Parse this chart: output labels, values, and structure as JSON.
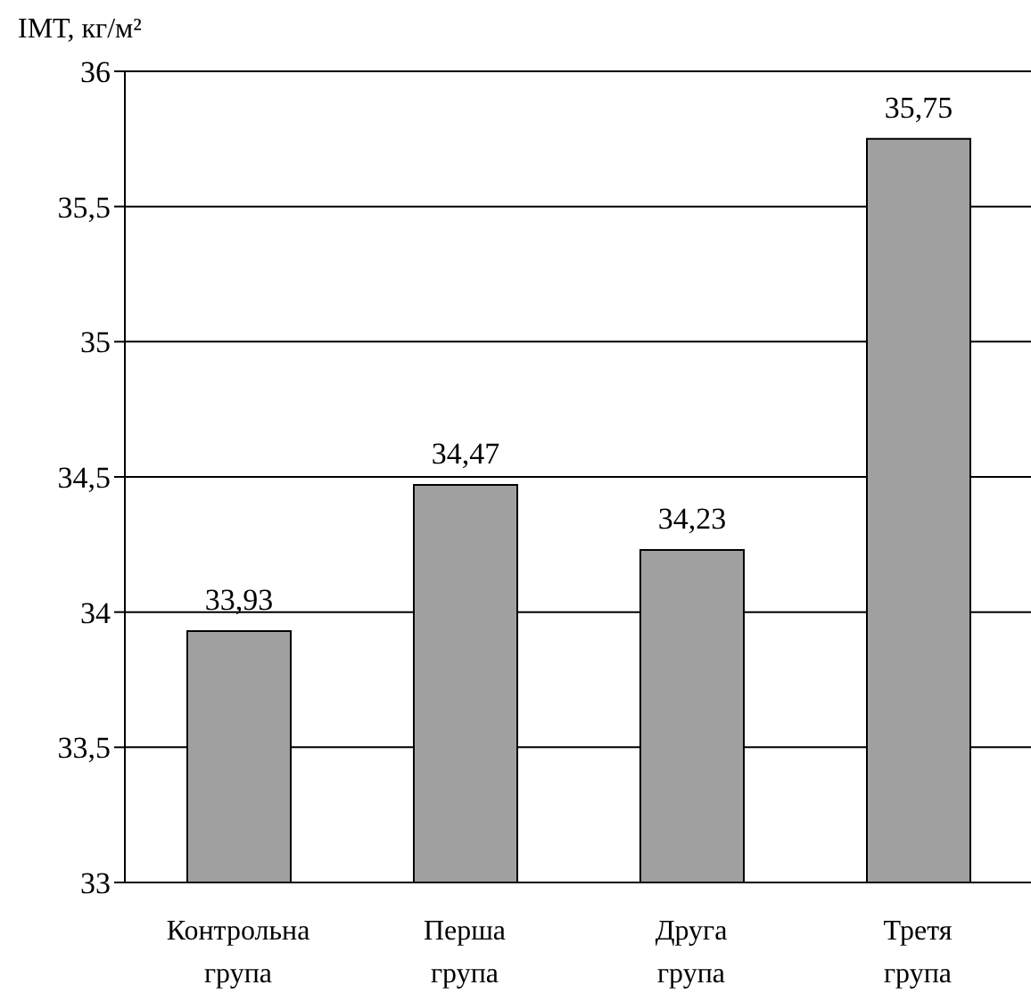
{
  "chart_data": {
    "type": "bar",
    "ylabel": "ІМТ, кг/м²",
    "categories": [
      "Контрольна група",
      "Перша група",
      "Друга група",
      "Третя група"
    ],
    "values": [
      33.93,
      34.47,
      34.23,
      35.75
    ],
    "value_labels": [
      "33,93",
      "34,47",
      "34,23",
      "35,75"
    ],
    "color": "#a0a0a0",
    "ylim": [
      33,
      36
    ],
    "yticks": [
      33,
      {
        "value": 33.5,
        "label": "33,5"
      },
      34,
      {
        "value": 34.5,
        "label": "34,5"
      },
      35,
      {
        "value": 35.5,
        "label": "35,5"
      },
      36
    ],
    "grid": "y"
  }
}
